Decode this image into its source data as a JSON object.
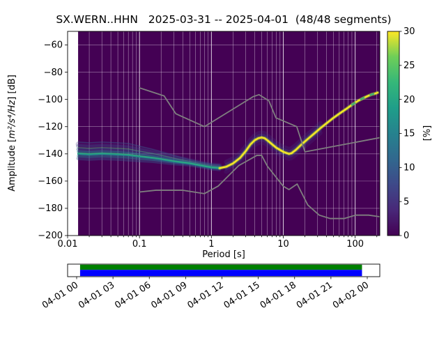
{
  "figure": {
    "background": "#ffffff"
  },
  "chart_data": {
    "type": "heatmap",
    "title": "SX.WERN..HHN   2025-03-31 -- 2025-04-01  (48/48 segments)",
    "xlabel": "Period [s]",
    "ylabel_parts": [
      "Amplitude [",
      "m²/s⁴/Hz",
      "] [dB]"
    ],
    "xscale": "log",
    "xlim": [
      0.01,
      220
    ],
    "ylim": [
      -200,
      -50
    ],
    "x_tick_values": [
      0.01,
      0.1,
      1,
      10,
      100
    ],
    "x_tick_labels": [
      "0.01",
      "0.1",
      "1",
      "10",
      "100"
    ],
    "y_tick_values": [
      -200,
      -180,
      -160,
      -140,
      -120,
      -100,
      -80,
      -60
    ],
    "y_tick_labels": [
      "−200",
      "−180",
      "−160",
      "−140",
      "−120",
      "−100",
      "−80",
      "−60"
    ],
    "grid": true,
    "background_color": "#440154",
    "grid_color": "#ffffff",
    "data_period_range": [
      0.014,
      205
    ],
    "mode_curve": {
      "description": "dominant PSD probability ridge (period s, amplitude dB)",
      "points": [
        [
          0.014,
          -140
        ],
        [
          0.02,
          -140.5
        ],
        [
          0.03,
          -140
        ],
        [
          0.05,
          -140.5
        ],
        [
          0.07,
          -141
        ],
        [
          0.1,
          -142
        ],
        [
          0.15,
          -143
        ],
        [
          0.2,
          -144
        ],
        [
          0.3,
          -145.5
        ],
        [
          0.5,
          -147
        ],
        [
          0.7,
          -148.5
        ],
        [
          1.0,
          -150
        ],
        [
          1.3,
          -150.5
        ],
        [
          1.6,
          -149.5
        ],
        [
          2,
          -147
        ],
        [
          2.5,
          -143
        ],
        [
          3,
          -138
        ],
        [
          3.5,
          -133
        ],
        [
          4,
          -130
        ],
        [
          4.5,
          -128.5
        ],
        [
          5,
          -128
        ],
        [
          5.5,
          -128.5
        ],
        [
          6,
          -130
        ],
        [
          7,
          -133
        ],
        [
          8,
          -135.5
        ],
        [
          10,
          -138.5
        ],
        [
          12,
          -140
        ],
        [
          13,
          -139.5
        ],
        [
          15,
          -137
        ],
        [
          18,
          -133
        ],
        [
          22,
          -129
        ],
        [
          27,
          -125
        ],
        [
          33,
          -121
        ],
        [
          40,
          -117.5
        ],
        [
          50,
          -113.5
        ],
        [
          60,
          -110.5
        ],
        [
          75,
          -107
        ],
        [
          90,
          -104
        ],
        [
          110,
          -101
        ],
        [
          130,
          -99
        ],
        [
          150,
          -97.5
        ],
        [
          170,
          -96.3
        ],
        [
          190,
          -95.7
        ],
        [
          205,
          -95
        ]
      ]
    },
    "noise_models": {
      "color": "#7f7f7f",
      "nhnm": [
        [
          0.1,
          -91.5
        ],
        [
          0.22,
          -97.4
        ],
        [
          0.32,
          -110.5
        ],
        [
          0.8,
          -120.0
        ],
        [
          3.8,
          -98.0
        ],
        [
          4.6,
          -96.5
        ],
        [
          6.3,
          -101.0
        ],
        [
          7.9,
          -113.5
        ],
        [
          15.4,
          -120.0
        ],
        [
          20.0,
          -138.5
        ],
        [
          220,
          -128.1
        ]
      ],
      "nlnm": [
        [
          0.1,
          -168.0
        ],
        [
          0.17,
          -166.7
        ],
        [
          0.4,
          -166.7
        ],
        [
          0.8,
          -169.2
        ],
        [
          1.24,
          -163.7
        ],
        [
          2.4,
          -148.6
        ],
        [
          4.3,
          -141.1
        ],
        [
          5.0,
          -141.1
        ],
        [
          6.0,
          -149.0
        ],
        [
          10.0,
          -163.8
        ],
        [
          12.0,
          -166.2
        ],
        [
          15.6,
          -162.1
        ],
        [
          21.9,
          -177.5
        ],
        [
          31.6,
          -185.0
        ],
        [
          45.0,
          -187.5
        ],
        [
          70.0,
          -187.5
        ],
        [
          101.0,
          -185.0
        ],
        [
          154.0,
          -185.0
        ],
        [
          220,
          -186.2
        ]
      ]
    },
    "colorbar": {
      "label": "[%]",
      "min": 0,
      "max": 30,
      "tick_values": [
        0,
        5,
        10,
        15,
        20,
        25,
        30
      ],
      "tick_labels": [
        "0",
        "5",
        "10",
        "15",
        "20",
        "25",
        "30"
      ],
      "cmap": "viridis",
      "cmap_stops": [
        [
          "0",
          "#440154"
        ],
        [
          "0.125",
          "#482878"
        ],
        [
          "0.25",
          "#3e4989"
        ],
        [
          "0.375",
          "#31688e"
        ],
        [
          "0.5",
          "#26828e"
        ],
        [
          "0.625",
          "#1f9e89"
        ],
        [
          "0.75",
          "#35b779"
        ],
        [
          "0.875",
          "#6ece58"
        ],
        [
          "1",
          "#fde725"
        ]
      ]
    },
    "band_short": [
      {
        "off": 17,
        "w": 1.3,
        "color": "#31688e",
        "op": 0.45
      },
      {
        "off": 14,
        "w": 7,
        "color": "#46327e",
        "op": 0.25
      },
      {
        "off": 11,
        "w": 6,
        "color": "#3b528b",
        "op": 0.3
      },
      {
        "off": 9,
        "w": 1.2,
        "color": "#7ad151",
        "op": 0.45
      },
      {
        "off": 6.5,
        "w": 5,
        "color": "#355f8d",
        "op": 0.45
      },
      {
        "off": 3,
        "w": 3.5,
        "color": "#2a788e",
        "op": 0.6
      },
      {
        "off": -3,
        "w": 3.5,
        "color": "#2a788e",
        "op": 0.55
      },
      {
        "off": -6.5,
        "w": 5,
        "color": "#355f8d",
        "op": 0.38
      },
      {
        "off": 0,
        "w": 2.6,
        "color": "#21918c",
        "op": 0.95
      },
      {
        "off": 1.2,
        "w": 1.4,
        "color": "#35b779",
        "op": 0.8
      }
    ],
    "band_long": [
      {
        "off": 7,
        "w": 6,
        "color": "#453882",
        "op": 0.28
      },
      {
        "off": -7,
        "w": 6,
        "color": "#453882",
        "op": 0.22
      },
      {
        "off": 3.5,
        "w": 3.5,
        "color": "#3b528b",
        "op": 0.35
      },
      {
        "off": -3.5,
        "w": 3.5,
        "color": "#3b528b",
        "op": 0.3
      }
    ],
    "mode_line": {
      "glow_color": "#a0da39",
      "glow_w": 4.5,
      "glow_op": 0.6,
      "core_color": "#fde725",
      "core_w": 2.2,
      "dash_color": "#22a884"
    }
  },
  "timeline": {
    "labels": [
      "04-01 00",
      "04-01 03",
      "04-01 06",
      "04-01 09",
      "04-01 12",
      "04-01 15",
      "04-01 18",
      "04-01 21",
      "04-02 00"
    ],
    "coverage_color": "#008000",
    "data_color": "#0000ff",
    "start_frac": 0.04,
    "end_frac": 0.943
  }
}
